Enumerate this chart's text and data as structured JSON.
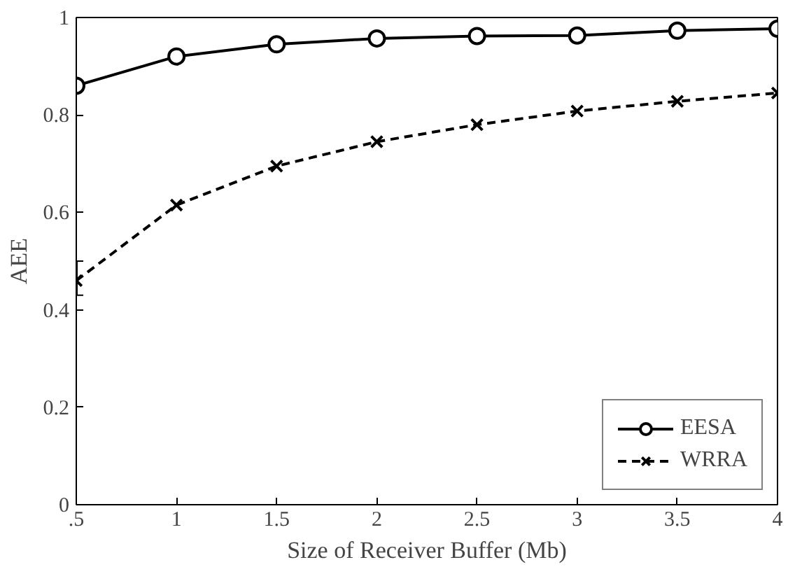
{
  "chart_data": {
    "type": "line",
    "xlabel": "Size of Receiver Buffer (Mb)",
    "ylabel": "AEE",
    "x": [
      0.5,
      1,
      1.5,
      2,
      2.5,
      3,
      3.5,
      4
    ],
    "series": [
      {
        "name": "EESA",
        "color": "#000000",
        "marker": "circle",
        "line_style": "solid",
        "values": [
          0.86,
          0.92,
          0.945,
          0.957,
          0.962,
          0.963,
          0.973,
          0.977
        ]
      },
      {
        "name": "WRRA",
        "color": "#000000",
        "marker": "cross",
        "line_style": "dashed",
        "values": [
          0.46,
          0.615,
          0.695,
          0.745,
          0.78,
          0.808,
          0.828,
          0.845
        ],
        "errors": [
          [
            0.43,
            0.5
          ],
          null,
          null,
          null,
          null,
          null,
          null,
          null
        ]
      }
    ],
    "xlim": [
      0.5,
      4
    ],
    "ylim": [
      0,
      1
    ],
    "xticks": [
      {
        "value": 0.5,
        "label": ".5"
      },
      1,
      1.5,
      2,
      2.5,
      3,
      3.5,
      4
    ],
    "yticks": [
      0,
      0.2,
      0.4,
      0.6,
      0.8,
      1
    ],
    "grid": false,
    "legend": "bottom right"
  }
}
